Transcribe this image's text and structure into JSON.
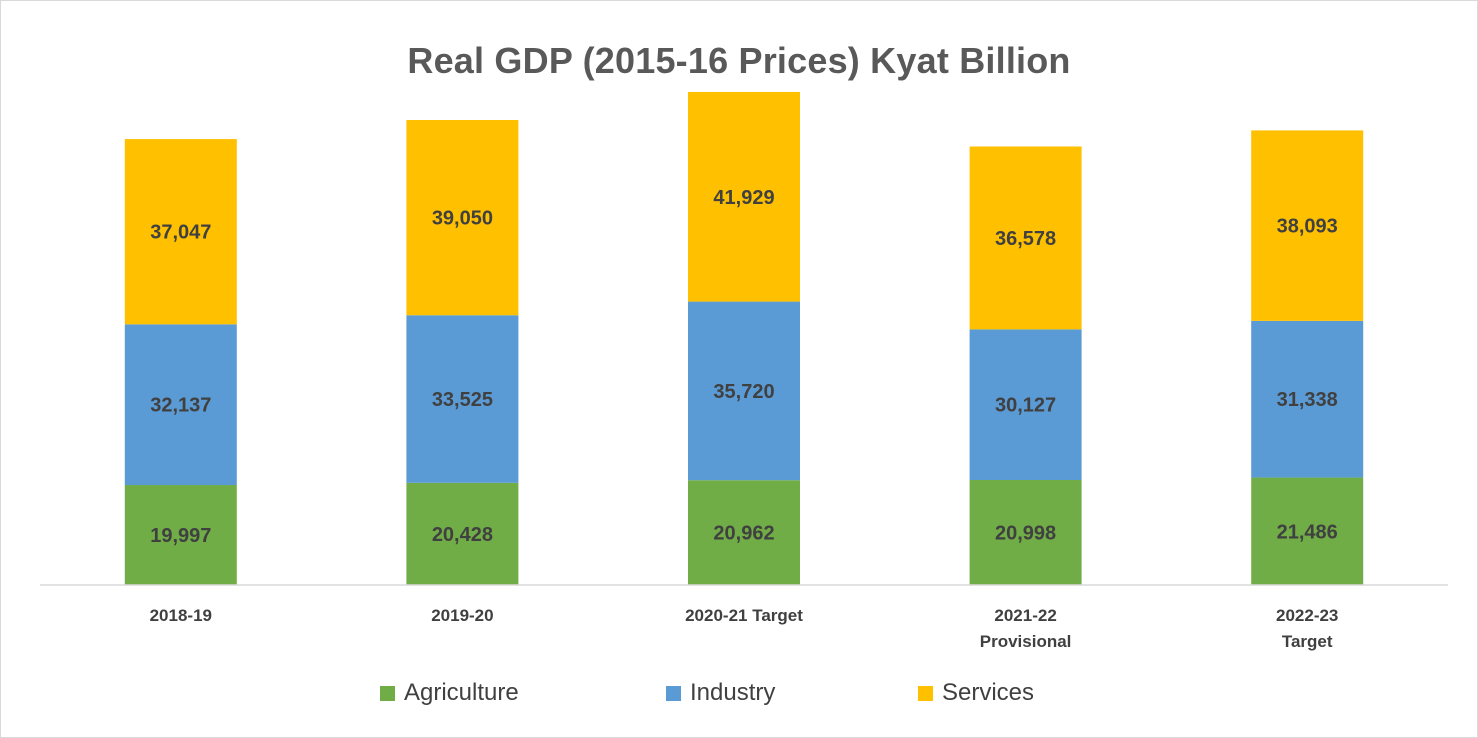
{
  "chart_data": {
    "type": "bar",
    "stacked": true,
    "title": "Real GDP (2015-16 Prices) Kyat Billion",
    "xlabel": "",
    "ylabel": "",
    "ylim": [
      0,
      100000
    ],
    "grid": false,
    "legend_position": "bottom",
    "categories": [
      [
        "2018-19"
      ],
      [
        "2019-20"
      ],
      [
        "2020-21 Target"
      ],
      [
        "2021-22",
        "Provisional"
      ],
      [
        "2022-23",
        "Target"
      ]
    ],
    "series": [
      {
        "name": "Agriculture",
        "color": "#70ad47",
        "values": [
          19997,
          20428,
          20962,
          20998,
          21486
        ],
        "labels": [
          "19,997",
          "20,428",
          "20,962",
          "20,998",
          "21,486"
        ]
      },
      {
        "name": "Industry",
        "color": "#5b9bd5",
        "values": [
          32137,
          33525,
          35720,
          30127,
          31338
        ],
        "labels": [
          "32,137",
          "33,525",
          "35,720",
          "30,127",
          "31,338"
        ]
      },
      {
        "name": "Services",
        "color": "#ffc000",
        "values": [
          37047,
          39050,
          41929,
          36578,
          38093
        ],
        "labels": [
          "37,047",
          "39,050",
          "41,929",
          "36,578",
          "38,093"
        ]
      }
    ]
  }
}
